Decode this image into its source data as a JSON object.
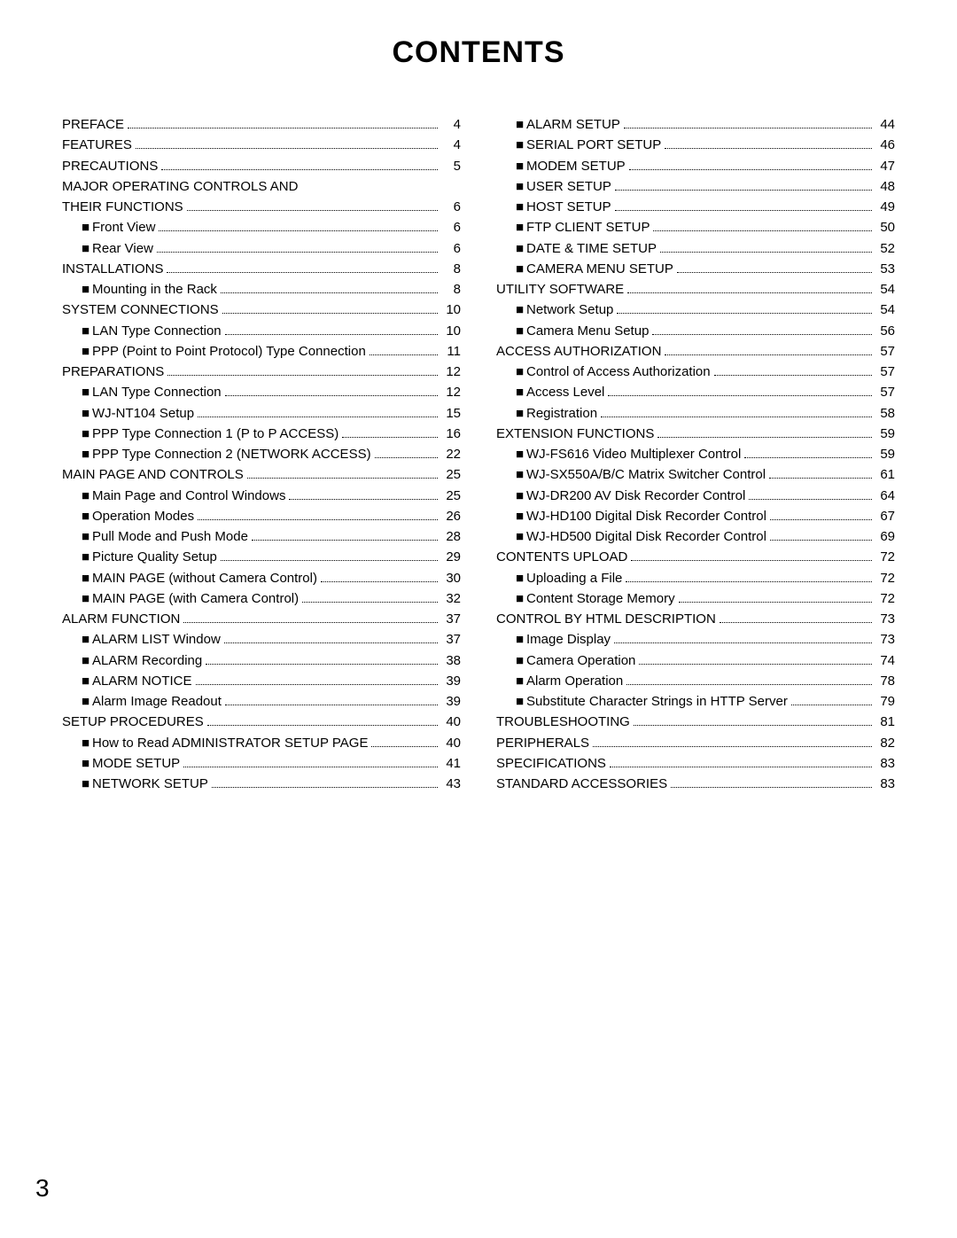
{
  "title": "CONTENTS",
  "page_number": "3",
  "left_col": [
    {
      "label": "PREFACE",
      "page": "4",
      "indent": false,
      "bullet": false
    },
    {
      "label": "FEATURES",
      "page": "4",
      "indent": false,
      "bullet": false
    },
    {
      "label": "PRECAUTIONS",
      "page": "5",
      "indent": false,
      "bullet": false
    },
    {
      "label": "MAJOR OPERATING CONTROLS AND",
      "page": "",
      "indent": false,
      "bullet": false,
      "no_dots": true
    },
    {
      "label": "THEIR FUNCTIONS",
      "page": "6",
      "indent": false,
      "bullet": false
    },
    {
      "label": "Front View",
      "page": "6",
      "indent": true,
      "bullet": true
    },
    {
      "label": "Rear View",
      "page": "6",
      "indent": true,
      "bullet": true
    },
    {
      "label": "INSTALLATIONS",
      "page": "8",
      "indent": false,
      "bullet": false
    },
    {
      "label": "Mounting in the Rack",
      "page": "8",
      "indent": true,
      "bullet": true
    },
    {
      "label": "SYSTEM CONNECTIONS",
      "page": "10",
      "indent": false,
      "bullet": false
    },
    {
      "label": "LAN Type Connection",
      "page": "10",
      "indent": true,
      "bullet": true
    },
    {
      "label": "PPP (Point to Point Protocol) Type Connection",
      "page": "11",
      "indent": true,
      "bullet": true
    },
    {
      "label": "PREPARATIONS",
      "page": "12",
      "indent": false,
      "bullet": false
    },
    {
      "label": "LAN Type Connection",
      "page": "12",
      "indent": true,
      "bullet": true
    },
    {
      "label": "WJ-NT104 Setup",
      "page": "15",
      "indent": true,
      "bullet": true
    },
    {
      "label": "PPP Type Connection 1 (P to P ACCESS)",
      "page": "16",
      "indent": true,
      "bullet": true
    },
    {
      "label": "PPP Type Connection 2 (NETWORK ACCESS)",
      "page": "22",
      "indent": true,
      "bullet": true
    },
    {
      "label": "MAIN PAGE AND CONTROLS",
      "page": "25",
      "indent": false,
      "bullet": false
    },
    {
      "label": "Main Page and Control Windows",
      "page": "25",
      "indent": true,
      "bullet": true
    },
    {
      "label": "Operation Modes",
      "page": "26",
      "indent": true,
      "bullet": true
    },
    {
      "label": "Pull Mode and Push Mode",
      "page": "28",
      "indent": true,
      "bullet": true
    },
    {
      "label": "Picture Quality Setup",
      "page": "29",
      "indent": true,
      "bullet": true
    },
    {
      "label": "MAIN PAGE (without Camera Control)",
      "page": "30",
      "indent": true,
      "bullet": true
    },
    {
      "label": "MAIN PAGE (with Camera Control)",
      "page": "32",
      "indent": true,
      "bullet": true
    },
    {
      "label": "ALARM FUNCTION",
      "page": "37",
      "indent": false,
      "bullet": false
    },
    {
      "label": "ALARM LIST Window",
      "page": "37",
      "indent": true,
      "bullet": true
    },
    {
      "label": "ALARM Recording",
      "page": "38",
      "indent": true,
      "bullet": true
    },
    {
      "label": "ALARM NOTICE",
      "page": "39",
      "indent": true,
      "bullet": true
    },
    {
      "label": "Alarm Image Readout",
      "page": "39",
      "indent": true,
      "bullet": true
    },
    {
      "label": "SETUP PROCEDURES",
      "page": "40",
      "indent": false,
      "bullet": false
    },
    {
      "label": "How to Read ADMINISTRATOR SETUP PAGE",
      "page": "40",
      "indent": true,
      "bullet": true
    },
    {
      "label": "MODE SETUP",
      "page": "41",
      "indent": true,
      "bullet": true
    },
    {
      "label": "NETWORK SETUP",
      "page": "43",
      "indent": true,
      "bullet": true
    }
  ],
  "right_col": [
    {
      "label": "ALARM SETUP",
      "page": "44",
      "indent": true,
      "bullet": true
    },
    {
      "label": "SERIAL PORT SETUP",
      "page": "46",
      "indent": true,
      "bullet": true
    },
    {
      "label": "MODEM SETUP",
      "page": "47",
      "indent": true,
      "bullet": true
    },
    {
      "label": "USER SETUP",
      "page": "48",
      "indent": true,
      "bullet": true
    },
    {
      "label": "HOST SETUP",
      "page": "49",
      "indent": true,
      "bullet": true
    },
    {
      "label": "FTP CLIENT SETUP",
      "page": "50",
      "indent": true,
      "bullet": true
    },
    {
      "label": "DATE & TIME SETUP",
      "page": "52",
      "indent": true,
      "bullet": true
    },
    {
      "label": "CAMERA MENU SETUP",
      "page": "53",
      "indent": true,
      "bullet": true
    },
    {
      "label": "UTILITY SOFTWARE",
      "page": "54",
      "indent": false,
      "bullet": false
    },
    {
      "label": "Network Setup",
      "page": "54",
      "indent": true,
      "bullet": true
    },
    {
      "label": "Camera Menu Setup",
      "page": "56",
      "indent": true,
      "bullet": true
    },
    {
      "label": "ACCESS AUTHORIZATION",
      "page": "57",
      "indent": false,
      "bullet": false
    },
    {
      "label": "Control of Access Authorization",
      "page": "57",
      "indent": true,
      "bullet": true
    },
    {
      "label": "Access Level",
      "page": "57",
      "indent": true,
      "bullet": true
    },
    {
      "label": "Registration",
      "page": "58",
      "indent": true,
      "bullet": true
    },
    {
      "label": "EXTENSION FUNCTIONS",
      "page": "59",
      "indent": false,
      "bullet": false
    },
    {
      "label": "WJ-FS616 Video Multiplexer Control",
      "page": "59",
      "indent": true,
      "bullet": true
    },
    {
      "label": "WJ-SX550A/B/C Matrix Switcher Control",
      "page": "61",
      "indent": true,
      "bullet": true
    },
    {
      "label": "WJ-DR200 AV Disk Recorder Control",
      "page": "64",
      "indent": true,
      "bullet": true
    },
    {
      "label": "WJ-HD100 Digital Disk Recorder Control",
      "page": "67",
      "indent": true,
      "bullet": true
    },
    {
      "label": "WJ-HD500 Digital Disk Recorder Control",
      "page": "69",
      "indent": true,
      "bullet": true
    },
    {
      "label": "CONTENTS UPLOAD",
      "page": "72",
      "indent": false,
      "bullet": false
    },
    {
      "label": "Uploading a File",
      "page": "72",
      "indent": true,
      "bullet": true
    },
    {
      "label": "Content Storage Memory",
      "page": "72",
      "indent": true,
      "bullet": true
    },
    {
      "label": "CONTROL BY HTML DESCRIPTION",
      "page": "73",
      "indent": false,
      "bullet": false
    },
    {
      "label": "Image Display",
      "page": "73",
      "indent": true,
      "bullet": true
    },
    {
      "label": "Camera Operation",
      "page": "74",
      "indent": true,
      "bullet": true
    },
    {
      "label": "Alarm Operation",
      "page": "78",
      "indent": true,
      "bullet": true
    },
    {
      "label": "Substitute Character Strings in HTTP Server",
      "page": "79",
      "indent": true,
      "bullet": true
    },
    {
      "label": "TROUBLESHOOTING",
      "page": "81",
      "indent": false,
      "bullet": false
    },
    {
      "label": "PERIPHERALS",
      "page": "82",
      "indent": false,
      "bullet": false
    },
    {
      "label": "SPECIFICATIONS",
      "page": "83",
      "indent": false,
      "bullet": false
    },
    {
      "label": "STANDARD ACCESSORIES",
      "page": "83",
      "indent": false,
      "bullet": false
    }
  ]
}
